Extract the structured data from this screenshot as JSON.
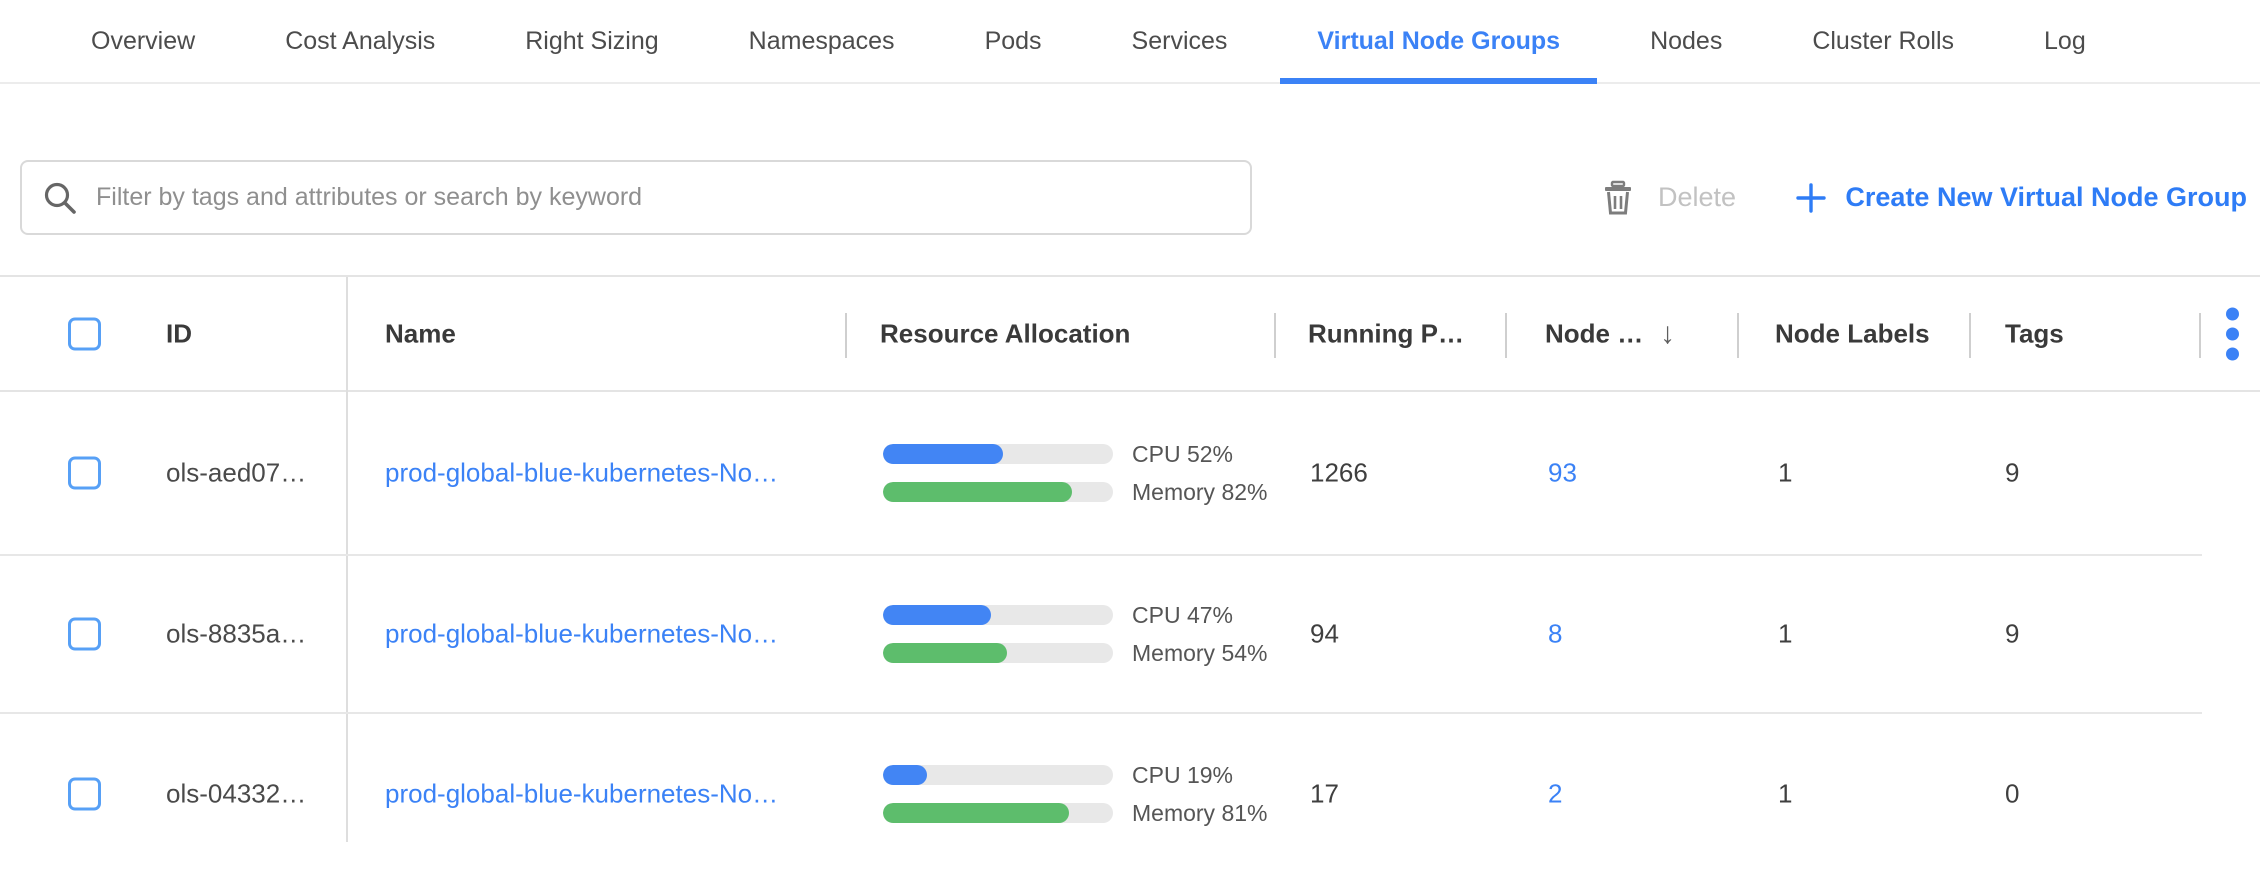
{
  "tabs": {
    "items": [
      {
        "label": "Overview",
        "active": false
      },
      {
        "label": "Cost Analysis",
        "active": false
      },
      {
        "label": "Right Sizing",
        "active": false
      },
      {
        "label": "Namespaces",
        "active": false
      },
      {
        "label": "Pods",
        "active": false
      },
      {
        "label": "Services",
        "active": false
      },
      {
        "label": "Virtual Node Groups",
        "active": true
      },
      {
        "label": "Nodes",
        "active": false
      },
      {
        "label": "Cluster Rolls",
        "active": false
      },
      {
        "label": "Log",
        "active": false
      }
    ]
  },
  "toolbar": {
    "search_placeholder": "Filter by tags and attributes or search by keyword",
    "search_value": "",
    "delete_label": "Delete",
    "create_label": "Create New Virtual Node Group"
  },
  "table": {
    "columns": {
      "id": "ID",
      "name": "Name",
      "resource": "Resource Allocation",
      "running_pods": "Running P…",
      "nodes": "Node …",
      "node_labels": "Node Labels",
      "tags": "Tags"
    },
    "sort_icon": "arrow-down",
    "rows": [
      {
        "id": "ols-aed07…",
        "name": "prod-global-blue-kubernetes-No…",
        "cpu_pct": 52,
        "memory_pct": 82,
        "cpu_label": "CPU 52%",
        "memory_label": "Memory 82%",
        "running_pods": "1266",
        "nodes": "93",
        "node_labels": "1",
        "tags": "9"
      },
      {
        "id": "ols-8835a…",
        "name": "prod-global-blue-kubernetes-No…",
        "cpu_pct": 47,
        "memory_pct": 54,
        "cpu_label": "CPU 47%",
        "memory_label": "Memory 54%",
        "running_pods": "94",
        "nodes": "8",
        "node_labels": "1",
        "tags": "9"
      },
      {
        "id": "ols-04332…",
        "name": "prod-global-blue-kubernetes-No…",
        "cpu_pct": 19,
        "memory_pct": 81,
        "cpu_label": "CPU 19%",
        "memory_label": "Memory 81%",
        "running_pods": "17",
        "nodes": "2",
        "node_labels": "1",
        "tags": "0"
      }
    ]
  },
  "colors": {
    "accent_blue": "#3b82f6",
    "bar_blue": "#4285f4",
    "bar_green": "#5dbd6c",
    "bar_track": "#e8e8e8",
    "disabled_text": "#c2c2c2",
    "icon_gray": "#7d7d7d"
  }
}
